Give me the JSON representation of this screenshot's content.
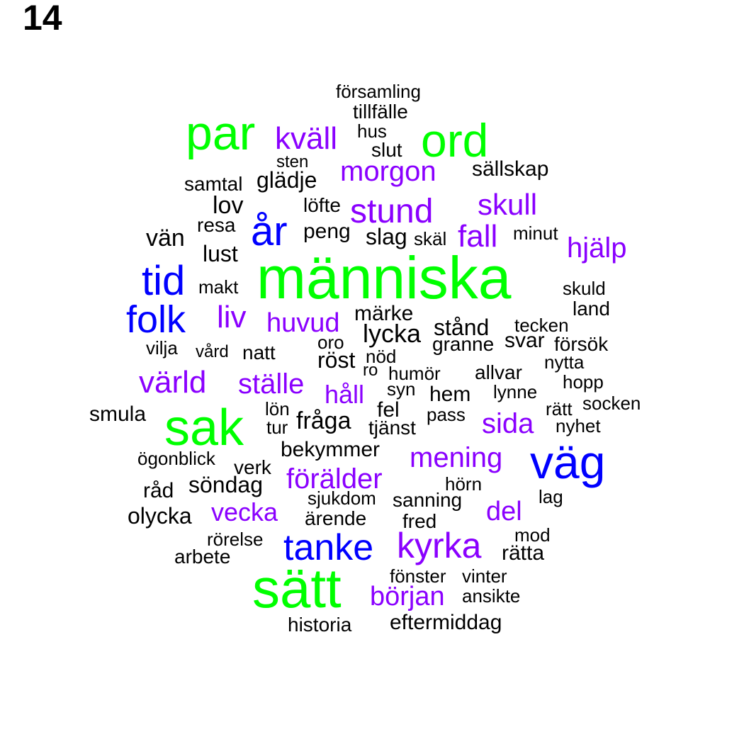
{
  "page_number": "14",
  "colors": {
    "tier1": "#00ff00",
    "tier2": "#0000ff",
    "tier3": "#8a00ff",
    "tier4": "#000000"
  },
  "words": [
    {
      "text": "människa",
      "tier": 1
    },
    {
      "text": "sätt",
      "tier": 1
    },
    {
      "text": "sak",
      "tier": 1
    },
    {
      "text": "par",
      "tier": 1
    },
    {
      "text": "ord",
      "tier": 1
    },
    {
      "text": "väg",
      "tier": 2
    },
    {
      "text": "år",
      "tier": 2
    },
    {
      "text": "tid",
      "tier": 2
    },
    {
      "text": "folk",
      "tier": 2
    },
    {
      "text": "tanke",
      "tier": 2
    },
    {
      "text": "kyrka",
      "tier": 3
    },
    {
      "text": "kväll",
      "tier": 3
    },
    {
      "text": "morgon",
      "tier": 3
    },
    {
      "text": "stund",
      "tier": 3
    },
    {
      "text": "skull",
      "tier": 3
    },
    {
      "text": "fall",
      "tier": 3
    },
    {
      "text": "hjälp",
      "tier": 3
    },
    {
      "text": "liv",
      "tier": 3
    },
    {
      "text": "huvud",
      "tier": 3
    },
    {
      "text": "värld",
      "tier": 3
    },
    {
      "text": "ställe",
      "tier": 3
    },
    {
      "text": "håll",
      "tier": 3
    },
    {
      "text": "sida",
      "tier": 3
    },
    {
      "text": "mening",
      "tier": 3
    },
    {
      "text": "förälder",
      "tier": 3
    },
    {
      "text": "vecka",
      "tier": 3
    },
    {
      "text": "del",
      "tier": 3
    },
    {
      "text": "början",
      "tier": 3
    },
    {
      "text": "församling",
      "tier": 4
    },
    {
      "text": "tillfälle",
      "tier": 4
    },
    {
      "text": "hus",
      "tier": 4
    },
    {
      "text": "slut",
      "tier": 4
    },
    {
      "text": "sten",
      "tier": 4
    },
    {
      "text": "sällskap",
      "tier": 4
    },
    {
      "text": "glädje",
      "tier": 4
    },
    {
      "text": "samtal",
      "tier": 4
    },
    {
      "text": "lov",
      "tier": 4
    },
    {
      "text": "löfte",
      "tier": 4
    },
    {
      "text": "resa",
      "tier": 4
    },
    {
      "text": "vän",
      "tier": 4
    },
    {
      "text": "peng",
      "tier": 4
    },
    {
      "text": "slag",
      "tier": 4
    },
    {
      "text": "skäl",
      "tier": 4
    },
    {
      "text": "minut",
      "tier": 4
    },
    {
      "text": "lust",
      "tier": 4
    },
    {
      "text": "makt",
      "tier": 4
    },
    {
      "text": "skuld",
      "tier": 4
    },
    {
      "text": "land",
      "tier": 4
    },
    {
      "text": "märke",
      "tier": 4
    },
    {
      "text": "lycka",
      "tier": 4
    },
    {
      "text": "stånd",
      "tier": 4
    },
    {
      "text": "tecken",
      "tier": 4
    },
    {
      "text": "granne",
      "tier": 4
    },
    {
      "text": "svar",
      "tier": 4
    },
    {
      "text": "försök",
      "tier": 4
    },
    {
      "text": "vilja",
      "tier": 4
    },
    {
      "text": "vård",
      "tier": 4
    },
    {
      "text": "natt",
      "tier": 4
    },
    {
      "text": "oro",
      "tier": 4
    },
    {
      "text": "röst",
      "tier": 4
    },
    {
      "text": "nöd",
      "tier": 4
    },
    {
      "text": "nytta",
      "tier": 4
    },
    {
      "text": "ro",
      "tier": 4
    },
    {
      "text": "humör",
      "tier": 4
    },
    {
      "text": "allvar",
      "tier": 4
    },
    {
      "text": "hopp",
      "tier": 4
    },
    {
      "text": "syn",
      "tier": 4
    },
    {
      "text": "hem",
      "tier": 4
    },
    {
      "text": "lynne",
      "tier": 4
    },
    {
      "text": "smula",
      "tier": 4
    },
    {
      "text": "lön",
      "tier": 4
    },
    {
      "text": "fel",
      "tier": 4
    },
    {
      "text": "rätt",
      "tier": 4
    },
    {
      "text": "socken",
      "tier": 4
    },
    {
      "text": "tur",
      "tier": 4
    },
    {
      "text": "fråga",
      "tier": 4
    },
    {
      "text": "tjänst",
      "tier": 4
    },
    {
      "text": "pass",
      "tier": 4
    },
    {
      "text": "nyhet",
      "tier": 4
    },
    {
      "text": "ögonblick",
      "tier": 4
    },
    {
      "text": "bekymmer",
      "tier": 4
    },
    {
      "text": "verk",
      "tier": 4
    },
    {
      "text": "råd",
      "tier": 4
    },
    {
      "text": "söndag",
      "tier": 4
    },
    {
      "text": "hörn",
      "tier": 4
    },
    {
      "text": "sjukdom",
      "tier": 4
    },
    {
      "text": "sanning",
      "tier": 4
    },
    {
      "text": "lag",
      "tier": 4
    },
    {
      "text": "olycka",
      "tier": 4
    },
    {
      "text": "ärende",
      "tier": 4
    },
    {
      "text": "fred",
      "tier": 4
    },
    {
      "text": "rörelse",
      "tier": 4
    },
    {
      "text": "mod",
      "tier": 4
    },
    {
      "text": "rätta",
      "tier": 4
    },
    {
      "text": "arbete",
      "tier": 4
    },
    {
      "text": "fönster",
      "tier": 4
    },
    {
      "text": "vinter",
      "tier": 4
    },
    {
      "text": "ansikte",
      "tier": 4
    },
    {
      "text": "historia",
      "tier": 4
    },
    {
      "text": "eftermiddag",
      "tier": 4
    }
  ]
}
